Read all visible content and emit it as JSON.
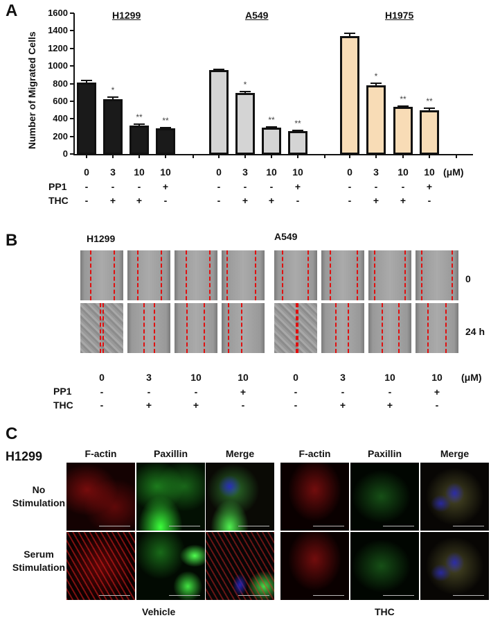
{
  "panels": {
    "A": {
      "letter": "A"
    },
    "B": {
      "letter": "B"
    },
    "C": {
      "letter": "C"
    }
  },
  "chart_data": {
    "type": "bar",
    "title": "",
    "ylabel": "Number of Migrated Cells",
    "xlabel": "",
    "ylim": [
      0,
      1600
    ],
    "yticks": [
      "0",
      "200",
      "400",
      "600",
      "800",
      "1000",
      "1200",
      "1400",
      "1600"
    ],
    "grid": false,
    "groups": [
      "H1299",
      "A549",
      "H1975"
    ],
    "categories": [
      "0",
      "3",
      "10",
      "10"
    ],
    "unit_label": "(μM)",
    "conditions": {
      "PP1": [
        "-",
        "-",
        "-",
        "+"
      ],
      "THC": [
        "-",
        "+",
        "+",
        "-"
      ]
    },
    "series": [
      {
        "name": "H1299",
        "color": "#1a1a1a",
        "values": [
          810,
          620,
          325,
          290
        ],
        "errors": [
          25,
          30,
          15,
          8
        ],
        "significance": [
          "",
          "*",
          "**",
          "**"
        ]
      },
      {
        "name": "A549",
        "color": "#d4d4d4",
        "values": [
          950,
          695,
          300,
          260
        ],
        "errors": [
          10,
          15,
          8,
          10
        ],
        "significance": [
          "",
          "*",
          "**",
          "**"
        ]
      },
      {
        "name": "H1975",
        "color": "#f8dcb6",
        "values": [
          1340,
          780,
          535,
          500
        ],
        "errors": [
          30,
          25,
          10,
          20
        ],
        "significance": [
          "",
          "*",
          "**",
          "**"
        ]
      }
    ]
  },
  "panelA": {
    "titles": [
      "H1299",
      "A549",
      "H1975"
    ],
    "yticks": [
      "1600",
      "1400",
      "1200",
      "1000",
      "800",
      "600",
      "400",
      "200",
      "0"
    ],
    "ylabel": "Number of Migrated Cells",
    "doses": [
      "0",
      "3",
      "10",
      "10",
      "0",
      "3",
      "10",
      "10",
      "0",
      "3",
      "10",
      "10"
    ],
    "unit": "(μM)",
    "row_labels": [
      "PP1",
      "THC"
    ],
    "pp1": [
      "-",
      "-",
      "-",
      "+",
      "-",
      "-",
      "-",
      "+",
      "-",
      "-",
      "-",
      "+"
    ],
    "thc": [
      "-",
      "+",
      "+",
      "-",
      "-",
      "+",
      "+",
      "-",
      "-",
      "+",
      "+",
      "-"
    ]
  },
  "panelB": {
    "cell_lines": [
      "H1299",
      "A549"
    ],
    "time_labels": [
      "0",
      "24 h"
    ],
    "doses": [
      "0",
      "3",
      "10",
      "10",
      "0",
      "3",
      "10",
      "10"
    ],
    "unit": "(μM)",
    "row_labels": [
      "PP1",
      "THC"
    ],
    "pp1": [
      "-",
      "-",
      "-",
      "+",
      "-",
      "-",
      "-",
      "+"
    ],
    "thc": [
      "-",
      "+",
      "+",
      "-",
      "-",
      "+",
      "+",
      "-"
    ]
  },
  "panelC": {
    "cell_line": "H1299",
    "columns": [
      "F-actin",
      "Paxillin",
      "Merge",
      "F-actin",
      "Paxillin",
      "Merge"
    ],
    "rows": [
      "No\nStimulation",
      "Serum\nStimulation"
    ],
    "row_line1": [
      "No",
      "Serum"
    ],
    "row_line2": [
      "Stimulation",
      "Stimulation"
    ],
    "groups": [
      "Vehicle",
      "THC"
    ]
  }
}
